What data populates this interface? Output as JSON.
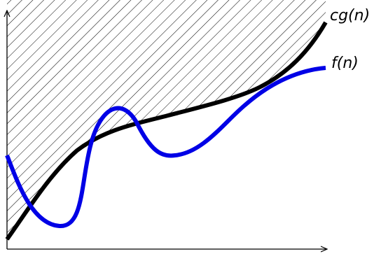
{
  "curves": [
    {
      "label": "cg(n)"
    },
    {
      "label": "f(n)"
    }
  ]
}
